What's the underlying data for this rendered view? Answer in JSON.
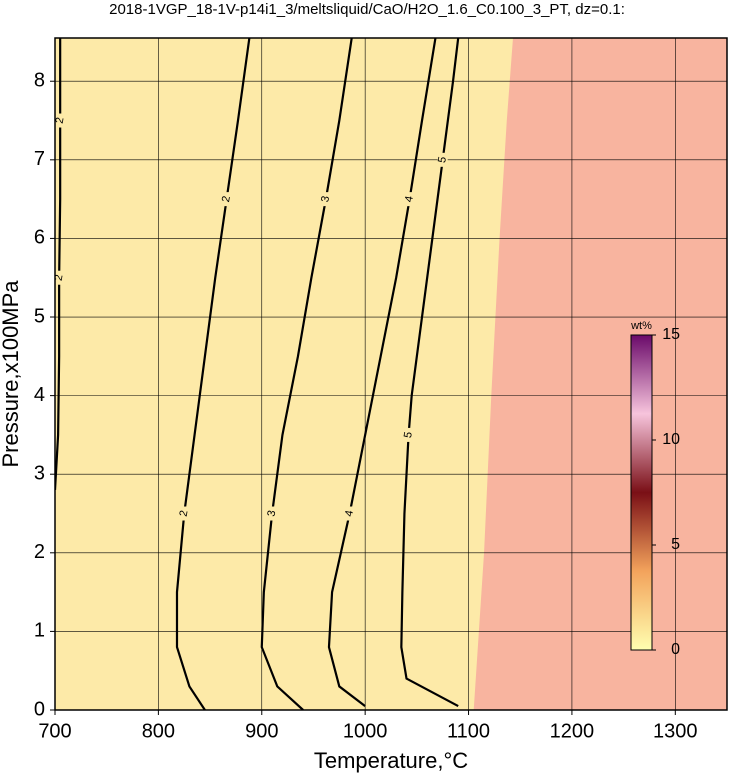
{
  "chart_data": {
    "type": "contour",
    "title": "2018-1VGP_18-1V-p14i1_3/meltsliquid/CaO/H2O_1.6_C0.100_3_PT, dz=0.1:",
    "x_label": "Temperature,°C",
    "y_label": "Pressure,x100MPa",
    "xlim": [
      700,
      1350
    ],
    "ylim": [
      0,
      8.55
    ],
    "xticks": [
      700,
      800,
      900,
      1000,
      1100,
      1200,
      1300
    ],
    "yticks": [
      0,
      1,
      2,
      3,
      4,
      5,
      6,
      7,
      8
    ],
    "grid": true,
    "low_color": "#fdeaa8",
    "high_color": "#f8b49f",
    "fill_boundary": {
      "x": [
        1105,
        1110,
        1115,
        1122,
        1130,
        1137,
        1143
      ],
      "y": [
        0,
        1,
        2,
        4,
        6,
        7.5,
        8.55
      ]
    },
    "contours": [
      {
        "level": "2",
        "x": [
          700,
          703,
          704,
          704,
          705,
          705,
          705
        ],
        "y": [
          2.8,
          3.5,
          4.5,
          5.5,
          6.5,
          7.5,
          8.55
        ]
      },
      {
        "level": "2",
        "x": [
          845,
          830,
          818,
          818,
          825,
          835,
          845,
          855,
          866,
          877,
          888
        ],
        "y": [
          0,
          0.3,
          0.8,
          1.5,
          2.5,
          3.5,
          4.5,
          5.5,
          6.5,
          7.5,
          8.55
        ]
      },
      {
        "level": "3",
        "x": [
          940,
          915,
          900,
          902,
          910,
          920,
          935,
          948,
          962,
          975,
          987
        ],
        "y": [
          0,
          0.3,
          0.8,
          1.5,
          2.5,
          3.5,
          4.5,
          5.5,
          6.5,
          7.5,
          8.55
        ]
      },
      {
        "level": "4",
        "x": [
          1000,
          975,
          965,
          968,
          985,
          1000,
          1015,
          1030,
          1043,
          1055,
          1068
        ],
        "y": [
          0.05,
          0.3,
          0.8,
          1.5,
          2.5,
          3.5,
          4.5,
          5.5,
          6.5,
          7.5,
          8.55
        ]
      },
      {
        "level": "5",
        "x": [
          1090,
          1040,
          1035,
          1036,
          1038,
          1042,
          1045,
          1055,
          1065,
          1075,
          1085,
          1090
        ],
        "y": [
          0.05,
          0.4,
          0.8,
          1.5,
          2.5,
          3.5,
          4,
          5,
          6,
          7,
          8,
          8.55
        ]
      }
    ],
    "colorbar": {
      "label": "wt%",
      "lim": [
        0,
        15
      ],
      "ticks": [
        0,
        5,
        10,
        15
      ],
      "colors": [
        "#ffffb0",
        "#f3a35c",
        "#7a0f16",
        "#f7c4dc",
        "#6a0a6a"
      ]
    }
  }
}
